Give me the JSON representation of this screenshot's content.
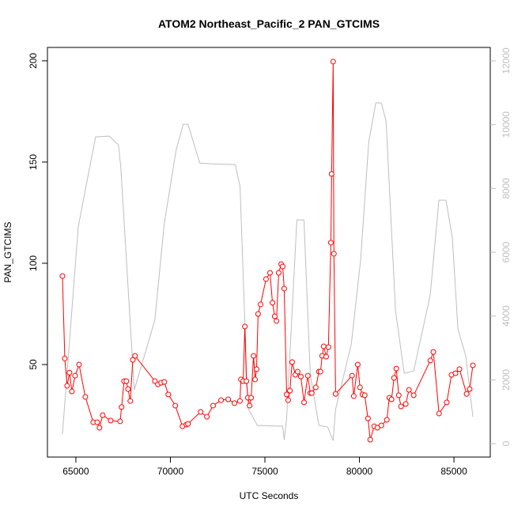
{
  "chart_data": {
    "type": "line",
    "title": "ATOM2 Northeast_Pacific_2 PAN_GTCIMS",
    "xlabel": "UTC Seconds",
    "ylabel": "PAN_GTCIMS",
    "xlim": [
      63497,
      86921
    ],
    "xticks": [
      65000,
      70000,
      75000,
      80000,
      85000
    ],
    "ylim": [
      4.3,
      206.6
    ],
    "yticks": [
      50,
      100,
      150,
      200
    ],
    "y2lim": [
      -421,
      12421
    ],
    "y2ticks": [
      0,
      2000,
      4000,
      6000,
      8000,
      10000,
      12000
    ],
    "y2color": "#bebebe",
    "series": [
      {
        "color": "#bebebe",
        "axis": "y2",
        "markers": false,
        "x": [
          64290,
          65125,
          65540,
          66045,
          66755,
          67255,
          67380,
          68090,
          69175,
          69675,
          70300,
          70680,
          70930,
          71555,
          72055,
          73435,
          73685,
          74100,
          74605,
          75940,
          76020,
          76145,
          76690,
          77065,
          77400,
          77860,
          78320,
          78610,
          78735,
          79570,
          80070,
          80490,
          80865,
          81155,
          81410,
          81910,
          82370,
          82870,
          83745,
          84205,
          84580,
          84915,
          85210,
          85625,
          86000
        ],
        "values": [
          297,
          6790,
          8079,
          9616,
          9640,
          9368,
          8650,
          1685,
          3866,
          6890,
          9195,
          10012,
          10012,
          8798,
          8773,
          8748,
          8054,
          1115,
          570,
          545,
          124,
          768,
          7014,
          7014,
          2156,
          570,
          520,
          99,
          1066,
          3123,
          5799,
          9443,
          10682,
          10682,
          10112,
          4163,
          2206,
          2280,
          4659,
          7633,
          7633,
          6444,
          3594,
          2751,
          843
        ]
      },
      {
        "color": "#ff0000",
        "markers": true,
        "x": [
          64290,
          64415,
          64540,
          64665,
          64790,
          64960,
          65170,
          65500,
          65920,
          66130,
          66250,
          66420,
          66840,
          67340,
          67420,
          67550,
          67670,
          67760,
          67880,
          68010,
          68130,
          69180,
          69340,
          69510,
          69680,
          69890,
          70260,
          70640,
          70850,
          70930,
          71600,
          71930,
          72260,
          72680,
          73060,
          73390,
          73680,
          73730,
          73850,
          73940,
          74020,
          74100,
          74190,
          74270,
          74400,
          74480,
          74560,
          74640,
          74770,
          75060,
          75270,
          75400,
          75520,
          75610,
          75730,
          75860,
          75940,
          76020,
          76150,
          76230,
          76320,
          76440,
          76610,
          76730,
          76900,
          77070,
          77270,
          77400,
          77480,
          77690,
          77860,
          77940,
          78030,
          78110,
          78240,
          78360,
          78490,
          78530,
          78610,
          78650,
          78740,
          79610,
          79700,
          79910,
          80030,
          80160,
          80280,
          80450,
          80570,
          80780,
          80950,
          81160,
          81450,
          81580,
          81700,
          81830,
          81950,
          82080,
          82200,
          82450,
          82620,
          82870,
          83750,
          83910,
          84210,
          84620,
          84870,
          85080,
          85290,
          85670,
          85830,
          86000
        ],
        "values": [
          93.7,
          53,
          39.5,
          46,
          36.7,
          44.5,
          50,
          34,
          21.5,
          21.5,
          18.8,
          25,
          22.3,
          21.9,
          29,
          41.8,
          41.8,
          37.9,
          32,
          52.3,
          54.3,
          41.8,
          40.2,
          41,
          41.4,
          35.2,
          29.7,
          19.5,
          20.3,
          20.7,
          26.6,
          24.2,
          29.7,
          32.4,
          32.8,
          30.9,
          32,
          42.6,
          41.8,
          68.8,
          41.8,
          33.6,
          29.7,
          33.6,
          54.3,
          42.6,
          47.7,
          75,
          79.7,
          92.2,
          95.3,
          80.5,
          73.8,
          71.5,
          95.3,
          99.6,
          98.4,
          87.5,
          35.2,
          32.4,
          37.1,
          51.2,
          44.9,
          46.5,
          44.1,
          31.3,
          44.5,
          35.9,
          35.9,
          38.7,
          46.5,
          46.5,
          54.3,
          59,
          53.9,
          58.6,
          110.2,
          144.1,
          199.6,
          104.7,
          35.5,
          44.5,
          34.4,
          50,
          38.7,
          35.2,
          34.8,
          23.4,
          12.9,
          19.5,
          18.8,
          19.9,
          22.7,
          33.6,
          32.8,
          43.4,
          48,
          34.8,
          29.3,
          30.5,
          37.5,
          34.8,
          52,
          56.2,
          25.8,
          31.3,
          44.9,
          45.7,
          47.7,
          35.5,
          37.9,
          49.6
        ]
      }
    ]
  }
}
